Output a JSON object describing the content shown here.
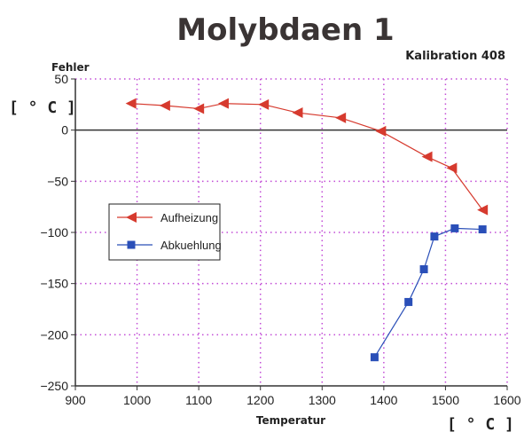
{
  "chart_data": {
    "type": "line",
    "title": "Molybdaen 1",
    "subtitle": "Kalibration 408",
    "xlabel": "Temperatur",
    "ylabel": "Fehler",
    "x_unit": "[ ° C ]",
    "y_unit": "[ ° C ]",
    "xlim": [
      900,
      1600
    ],
    "ylim": [
      -250,
      50
    ],
    "x_ticks": [
      "900",
      "1000",
      "1100",
      "1200",
      "1300",
      "1400",
      "1500",
      "1600"
    ],
    "y_ticks": [
      "50",
      "0",
      "−50",
      "−100",
      "−150",
      "−200",
      "−250"
    ],
    "grid": true,
    "legend_position": "left",
    "series": [
      {
        "name": "Aufheizung",
        "color": "#d63a2e",
        "marker": "triangle-left",
        "points": [
          [
            990,
            26
          ],
          [
            1045,
            24
          ],
          [
            1100,
            21
          ],
          [
            1140,
            26
          ],
          [
            1205,
            25
          ],
          [
            1260,
            17
          ],
          [
            1330,
            12
          ],
          [
            1395,
            -1
          ],
          [
            1470,
            -26
          ],
          [
            1510,
            -37
          ],
          [
            1560,
            -78
          ]
        ]
      },
      {
        "name": "Abkuehlung",
        "color": "#2a4fb8",
        "marker": "square",
        "points": [
          [
            1385,
            -222
          ],
          [
            1440,
            -168
          ],
          [
            1465,
            -136
          ],
          [
            1482,
            -104
          ],
          [
            1515,
            -96
          ],
          [
            1560,
            -97
          ]
        ]
      }
    ]
  }
}
